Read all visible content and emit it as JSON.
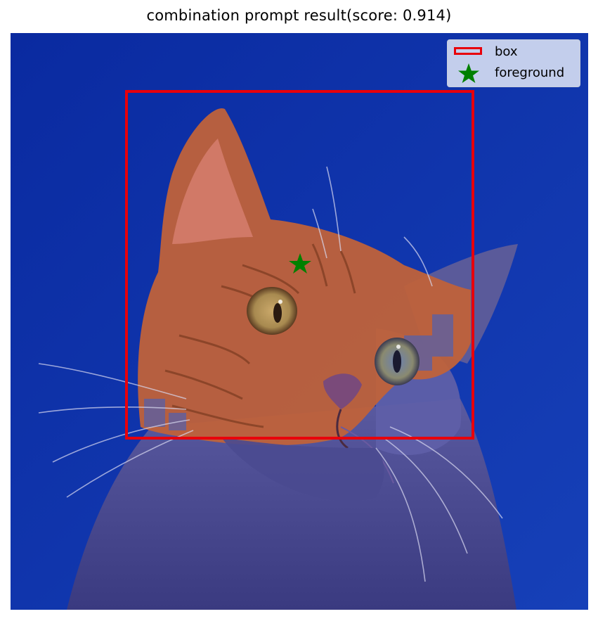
{
  "figure": {
    "title": "combination prompt result(score: 0.914)"
  },
  "legend": {
    "items": [
      {
        "label": "box",
        "marker": "rectangle-outline",
        "color": "#e8000b"
      },
      {
        "label": "foreground",
        "marker": "star",
        "color": "#008000"
      }
    ]
  },
  "image": {
    "subject": "cat",
    "mask_color": "#ff7a30",
    "background_tint": "#0a2aa0",
    "box_color": "#e8000b",
    "point_color": "#008000"
  }
}
